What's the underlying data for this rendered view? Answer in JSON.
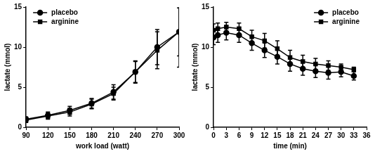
{
  "chart_data": [
    {
      "type": "line",
      "x_label": "work load (watt)",
      "y_label": "lactate (mmol)",
      "x": [
        90,
        120,
        150,
        180,
        210,
        240,
        270,
        300
      ],
      "series": [
        {
          "name": "placebo",
          "color": "#000000",
          "marker": "circle",
          "values": [
            1.0,
            1.5,
            2.1,
            3.0,
            4.4,
            6.9,
            10.0,
            11.9
          ],
          "error": [
            0.3,
            0.4,
            0.5,
            0.6,
            0.9,
            1.4,
            2.2,
            3.0
          ]
        },
        {
          "name": "arginine",
          "color": "#000000",
          "marker": "square",
          "values": [
            0.9,
            1.4,
            1.9,
            2.9,
            4.2,
            6.9,
            9.6,
            11.9
          ],
          "error": [
            0.3,
            0.4,
            0.5,
            0.6,
            0.8,
            1.3,
            2.3,
            4.4
          ]
        }
      ],
      "xlim": [
        90,
        300
      ],
      "xticks": [
        90,
        120,
        150,
        180,
        210,
        240,
        270,
        300
      ],
      "ylim": [
        0,
        15
      ],
      "yticks": [
        0,
        5,
        10,
        15
      ],
      "grid": false,
      "legend": "upper left"
    },
    {
      "type": "line",
      "x_label": "time (min)",
      "y_label": "lactate (mmol)",
      "x": [
        0,
        1,
        3,
        6,
        9,
        12,
        15,
        18,
        21,
        24,
        27,
        30,
        33
      ],
      "series": [
        {
          "name": "placebo",
          "color": "#000000",
          "marker": "circle",
          "values": [
            11.2,
            11.5,
            11.8,
            11.5,
            10.5,
            9.6,
            8.8,
            7.9,
            7.3,
            7.0,
            6.8,
            6.9,
            6.4
          ],
          "error": [
            0.9,
            0.9,
            0.9,
            0.9,
            0.9,
            0.9,
            0.9,
            0.9,
            0.8,
            0.8,
            0.8,
            0.6,
            0.5
          ]
        },
        {
          "name": "arginine",
          "color": "#000000",
          "marker": "square",
          "values": [
            12.1,
            12.3,
            12.5,
            12.3,
            11.3,
            10.8,
            9.8,
            8.7,
            8.2,
            7.9,
            7.7,
            7.5,
            7.2
          ],
          "error": [
            0.8,
            0.7,
            0.6,
            0.7,
            0.8,
            0.9,
            1.0,
            0.9,
            0.8,
            0.7,
            0.6,
            0.4,
            0.3
          ]
        }
      ],
      "xlim": [
        0,
        36
      ],
      "xticks": [
        0,
        3,
        6,
        9,
        12,
        15,
        18,
        21,
        24,
        27,
        30,
        33,
        36
      ],
      "ylim": [
        0,
        15
      ],
      "yticks": [
        0,
        5,
        10,
        15
      ],
      "grid": false,
      "legend": "upper right"
    }
  ]
}
